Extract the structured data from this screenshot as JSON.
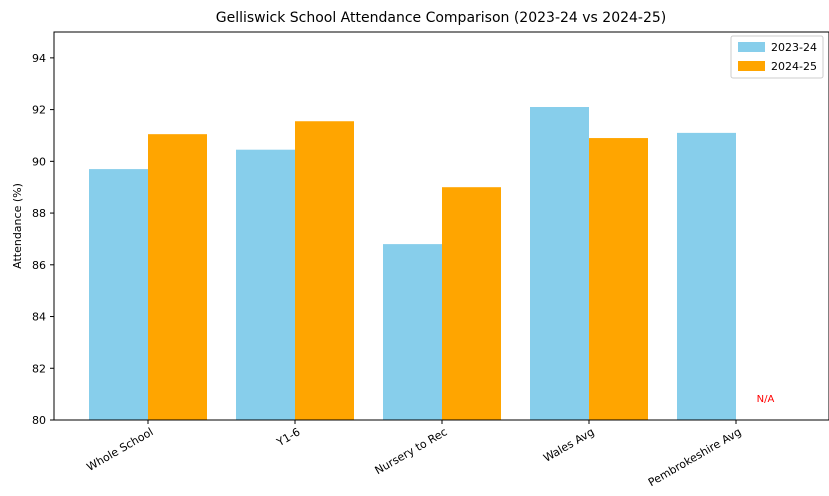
{
  "chart_data": {
    "type": "bar",
    "title": "Gelliswick School Attendance Comparison (2023-24 vs 2024-25)",
    "xlabel": "",
    "ylabel": "Attendance (%)",
    "ylim": [
      80,
      95
    ],
    "yticks": [
      80,
      82,
      84,
      86,
      88,
      90,
      92,
      94
    ],
    "categories": [
      "Whole School",
      "Y1-6",
      "Nursery to Rec",
      "Wales Avg",
      "Pembrokeshire Avg"
    ],
    "series": [
      {
        "name": "2023-24",
        "color": "#87ceeb",
        "values": [
          89.7,
          90.45,
          86.8,
          92.1,
          91.1
        ]
      },
      {
        "name": "2024-25",
        "color": "#ffa500",
        "values": [
          91.05,
          91.55,
          89.0,
          90.9,
          null
        ]
      }
    ],
    "annotations": [
      {
        "text": "N/A",
        "category_index": 4,
        "series_index": 1,
        "y": 80.7,
        "color": "#ff0000"
      }
    ],
    "legend": "top-right",
    "grid": false
  }
}
